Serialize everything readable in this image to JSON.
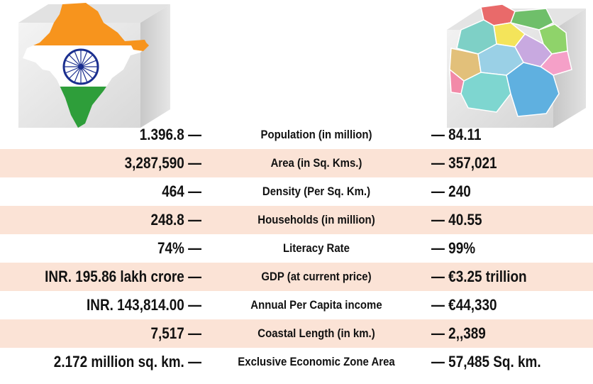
{
  "rows": [
    {
      "india": "1.396.8 —",
      "metric": "Population (in million)",
      "germany": "— 84.11"
    },
    {
      "india": "3,287,590 —",
      "metric": "Area (in Sq. Kms.)",
      "germany": "— 357,021"
    },
    {
      "india": "464 —",
      "metric": "Density (Per Sq. Km.)",
      "germany": "— 240"
    },
    {
      "india": "248.8 —",
      "metric": "Households (in million)",
      "germany": "— 40.55"
    },
    {
      "india": "74% —",
      "metric": "Literacy Rate",
      "germany": "— 99%"
    },
    {
      "india": "INR. 195.86 lakh crore —",
      "metric": "GDP (at current price)",
      "germany": "— €3.25 trillion"
    },
    {
      "india": "INR. 143,814.00 —",
      "metric": "Annual Per Capita income",
      "germany": "— €44,330"
    },
    {
      "india": "7,517 —",
      "metric": "Coastal Length (in km.)",
      "germany": "— 2,,389"
    },
    {
      "india": "2.172 million sq. km. —",
      "metric": "Exclusive Economic Zone Area",
      "germany": "— 57,485 Sq. km."
    }
  ],
  "colors": {
    "row_shade": "#fbe3d6",
    "saffron": "#f7941d",
    "india_green": "#2e9e3a",
    "chakra_blue": "#1b2f8f"
  }
}
